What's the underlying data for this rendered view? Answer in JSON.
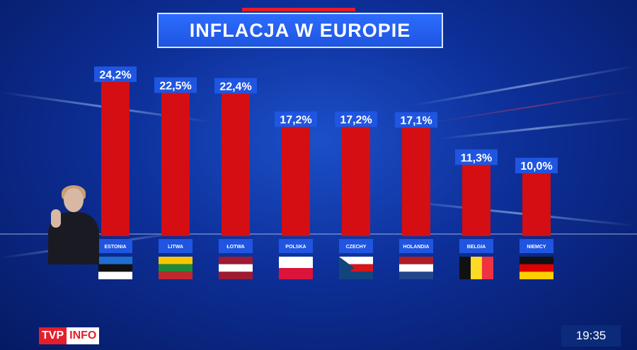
{
  "header": {
    "title": "INFLACJA W EUROPIE"
  },
  "branding": {
    "channel_a": "TVP",
    "channel_b": "INFO"
  },
  "clock": {
    "time": "19:35"
  },
  "colors": {
    "bar": "#d40e12",
    "label_bg": "#1f55e0",
    "accent": "#e41e2a"
  },
  "chart_data": {
    "type": "bar",
    "title": "INFLACJA W EUROPIE",
    "categories": [
      "ESTONIA",
      "LITWA",
      "ŁOTWA",
      "POLSKA",
      "CZECHY",
      "HOLANDIA",
      "BELGIA",
      "NIEMCY"
    ],
    "values": [
      24.2,
      22.5,
      22.4,
      17.2,
      17.2,
      17.1,
      11.3,
      10.0
    ],
    "value_labels": [
      "24,2%",
      "22,5%",
      "22,4%",
      "17,2%",
      "17,2%",
      "17,1%",
      "11,3%",
      "10,0%"
    ],
    "unit": "%",
    "ylim": [
      0,
      24.2
    ],
    "grid": false,
    "legend": "none",
    "category_icons": [
      "flag-estonia",
      "flag-lithuania",
      "flag-latvia",
      "flag-poland",
      "flag-czechia",
      "flag-netherlands",
      "flag-belgium",
      "flag-germany"
    ]
  }
}
